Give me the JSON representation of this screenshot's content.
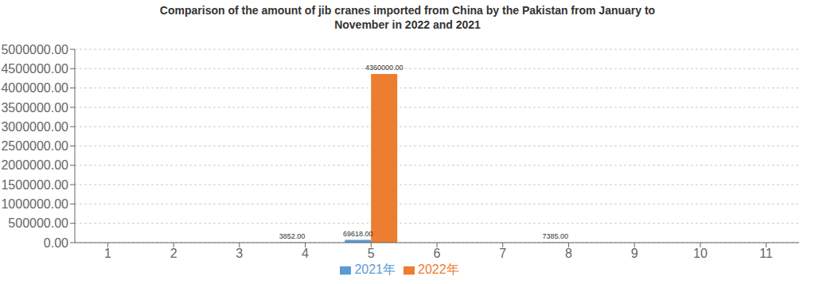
{
  "chart_data": {
    "type": "bar",
    "title": "Comparison of the amount of jib cranes imported from China by the Pakistan from January to\nNovember in 2022 and 2021",
    "categories": [
      "1",
      "2",
      "3",
      "4",
      "5",
      "6",
      "7",
      "8",
      "9",
      "10",
      "11"
    ],
    "series": [
      {
        "name": "2021年",
        "color": "#5b9bd5",
        "values": [
          0,
          0,
          0,
          3852,
          69618,
          0,
          0,
          7385,
          0,
          0,
          0
        ],
        "value_labels": [
          null,
          null,
          null,
          "3852.00",
          "69618.00",
          null,
          null,
          "7385.00",
          null,
          null,
          null
        ]
      },
      {
        "name": "2022年",
        "color": "#ed7d31",
        "values": [
          0,
          0,
          0,
          0,
          4360000,
          0,
          0,
          0,
          0,
          0,
          0
        ],
        "value_labels": [
          null,
          null,
          null,
          null,
          "4360000.00",
          null,
          null,
          null,
          null,
          null,
          null
        ]
      }
    ],
    "ylim": [
      0,
      5000000
    ],
    "yticks": [
      {
        "value": 0,
        "label": "0.00"
      },
      {
        "value": 500000,
        "label": "500000.00"
      },
      {
        "value": 1000000,
        "label": "1000000.00"
      },
      {
        "value": 1500000,
        "label": "1500000.00"
      },
      {
        "value": 2000000,
        "label": "2000000.00"
      },
      {
        "value": 2500000,
        "label": "2500000.00"
      },
      {
        "value": 3000000,
        "label": "3000000.00"
      },
      {
        "value": 3500000,
        "label": "3500000.00"
      },
      {
        "value": 4000000,
        "label": "4000000.00"
      },
      {
        "value": 4500000,
        "label": "4500000.00"
      },
      {
        "value": 5000000,
        "label": "5000000.00"
      }
    ],
    "grid": true,
    "legend": "bottom",
    "data_labels": true
  }
}
